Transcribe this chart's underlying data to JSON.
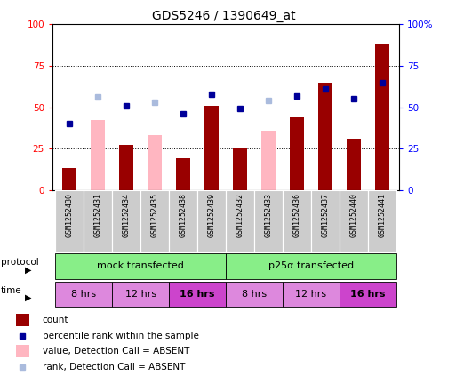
{
  "title": "GDS5246 / 1390649_at",
  "samples": [
    "GSM1252430",
    "GSM1252431",
    "GSM1252434",
    "GSM1252435",
    "GSM1252438",
    "GSM1252439",
    "GSM1252432",
    "GSM1252433",
    "GSM1252436",
    "GSM1252437",
    "GSM1252440",
    "GSM1252441"
  ],
  "count_values": [
    13,
    42,
    27,
    33,
    19,
    51,
    25,
    36,
    44,
    65,
    31,
    88
  ],
  "count_absent": [
    false,
    true,
    false,
    true,
    false,
    false,
    false,
    true,
    false,
    false,
    false,
    false
  ],
  "rank_values": [
    40,
    56,
    51,
    53,
    46,
    58,
    49,
    54,
    57,
    61,
    55,
    65
  ],
  "rank_absent": [
    false,
    true,
    false,
    true,
    false,
    false,
    false,
    true,
    false,
    false,
    false,
    false
  ],
  "bar_color_dark_red": "#990000",
  "bar_color_pink": "#FFB6C1",
  "dot_color_dark_blue": "#000099",
  "dot_color_light_blue": "#AABBDD",
  "yticks": [
    0,
    25,
    50,
    75,
    100
  ],
  "background_color": "#ffffff",
  "protocol_labels": [
    "mock transfected",
    "p25α transfected"
  ],
  "protocol_color": "#88EE88",
  "time_labels": [
    "8 hrs",
    "12 hrs",
    "16 hrs",
    "8 hrs",
    "12 hrs",
    "16 hrs"
  ],
  "time_colors": [
    "#DD88DD",
    "#DD88DD",
    "#CC44CC",
    "#DD88DD",
    "#DD88DD",
    "#CC44CC"
  ],
  "sample_bg_color": "#CCCCCC",
  "legend_items": [
    {
      "label": "count",
      "color": "#990000",
      "type": "rect"
    },
    {
      "label": "percentile rank within the sample",
      "color": "#000099",
      "type": "square"
    },
    {
      "label": "value, Detection Call = ABSENT",
      "color": "#FFB6C1",
      "type": "rect"
    },
    {
      "label": "rank, Detection Call = ABSENT",
      "color": "#AABBDD",
      "type": "square"
    }
  ]
}
